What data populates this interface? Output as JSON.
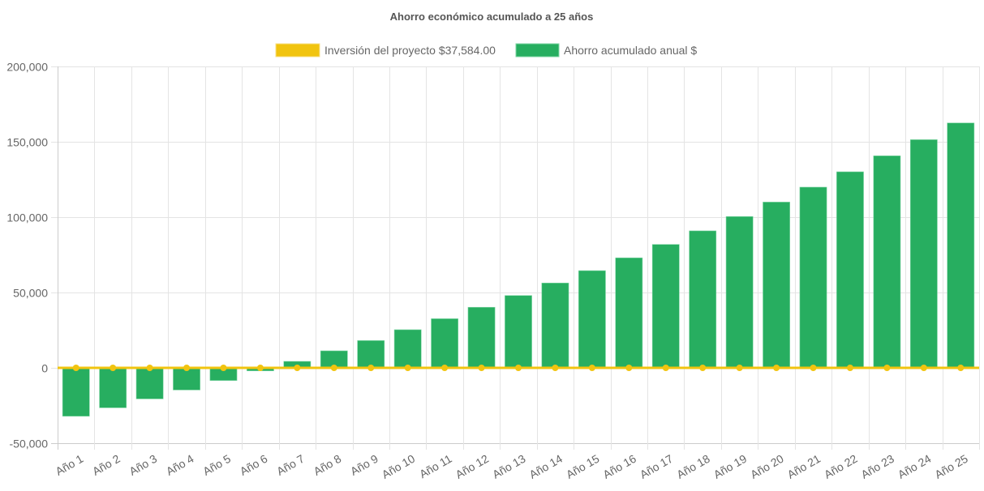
{
  "chart_data": {
    "type": "bar",
    "title": "Ahorro económico acumulado a 25 años",
    "xlabel": "",
    "ylabel": "",
    "ylim": [
      -50000,
      200000
    ],
    "yticks": [
      -50000,
      0,
      50000,
      100000,
      150000,
      200000
    ],
    "ytick_labels": [
      "-50,000",
      "0",
      "50,000",
      "100,000",
      "150,000",
      "200,000"
    ],
    "grid": true,
    "legend_position": "top-center",
    "categories": [
      "Año 1",
      "Año 2",
      "Año 3",
      "Año 4",
      "Año 5",
      "Año 6",
      "Año 7",
      "Año 8",
      "Año 9",
      "Año 10",
      "Año 11",
      "Año 12",
      "Año 13",
      "Año 14",
      "Año 15",
      "Año 16",
      "Año 17",
      "Año 18",
      "Año 19",
      "Año 20",
      "Año 21",
      "Año 22",
      "Año 23",
      "Año 24",
      "Año 25"
    ],
    "series": [
      {
        "name": "Inversión del proyecto $37,584.00",
        "type": "line",
        "color": "#f1c40f",
        "values": [
          0,
          0,
          0,
          0,
          0,
          0,
          0,
          0,
          0,
          0,
          0,
          0,
          0,
          0,
          0,
          0,
          0,
          0,
          0,
          0,
          0,
          0,
          0,
          0,
          0
        ]
      },
      {
        "name": "Ahorro acumulado anual $",
        "type": "bar",
        "color": "#27ae60",
        "values": [
          -32100,
          -26500,
          -20600,
          -14700,
          -8400,
          -2000,
          4300,
          11300,
          18100,
          25300,
          32600,
          40200,
          48000,
          56300,
          64500,
          73000,
          81900,
          90900,
          100400,
          110000,
          119900,
          130100,
          140700,
          151400,
          162500
        ]
      }
    ]
  }
}
